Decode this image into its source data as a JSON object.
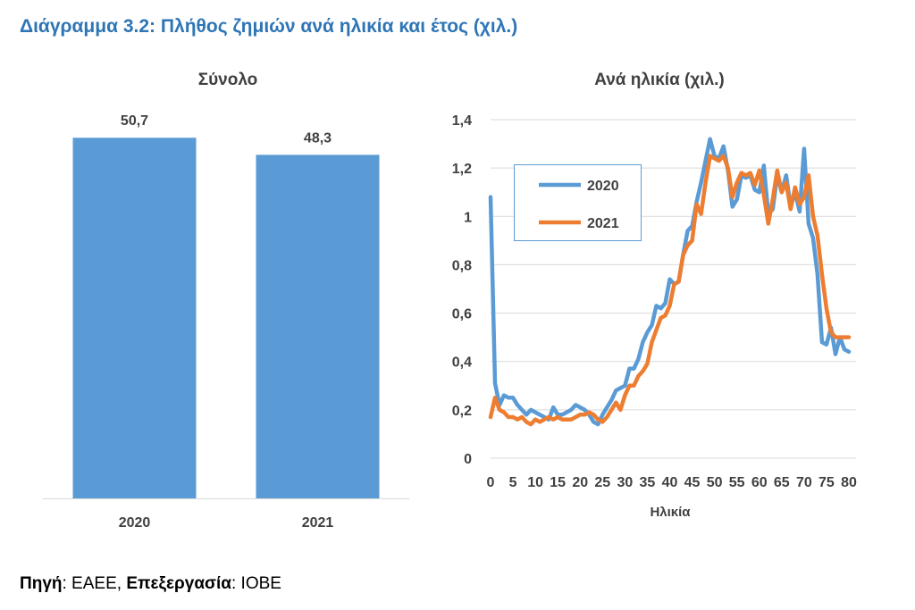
{
  "title": "Διάγραμμα 3.2: Πλήθος ζημιών ανά ηλικία και έτος (χιλ.)",
  "source": {
    "label1": "Πηγή",
    "text1": ": ΕΑΕΕ, ",
    "label2": "Επεξεργασία",
    "text2": ": ΙΟΒΕ"
  },
  "colors": {
    "series_2020": "#5b9bd5",
    "series_2021": "#ed7d31",
    "title": "#2e75b6",
    "grid": "#d9d9d9",
    "text": "#404040"
  },
  "chart_data": [
    {
      "type": "bar",
      "title": "Σύνολο",
      "categories": [
        "2020",
        "2021"
      ],
      "values": [
        50.7,
        48.3
      ],
      "data_labels": [
        "50,7",
        "48,3"
      ],
      "ylim": [
        0,
        55
      ],
      "grid": false
    },
    {
      "type": "line",
      "title": "Ανά ηλικία (χιλ.)",
      "xlabel": "Ηλικία",
      "ylabel": "",
      "xlim": [
        0,
        80
      ],
      "ylim": [
        0,
        1.4
      ],
      "x_ticks": [
        "0",
        "5",
        "10",
        "15",
        "20",
        "25",
        "30",
        "35",
        "40",
        "45",
        "50",
        "55",
        "60",
        "65",
        "70",
        "75",
        "80"
      ],
      "y_ticks": [
        "0",
        "0,2",
        "0,4",
        "0,6",
        "0,8",
        "1",
        "1,2",
        "1,4"
      ],
      "grid": true,
      "legend_position": "top-left",
      "series": [
        {
          "name": "2020",
          "x": [
            0,
            1,
            2,
            3,
            4,
            5,
            6,
            7,
            8,
            9,
            10,
            11,
            12,
            13,
            14,
            15,
            16,
            17,
            18,
            19,
            20,
            21,
            22,
            23,
            24,
            25,
            26,
            27,
            28,
            29,
            30,
            31,
            32,
            33,
            34,
            35,
            36,
            37,
            38,
            39,
            40,
            41,
            42,
            43,
            44,
            45,
            46,
            47,
            48,
            49,
            50,
            51,
            52,
            53,
            54,
            55,
            56,
            57,
            58,
            59,
            60,
            61,
            62,
            63,
            64,
            65,
            66,
            67,
            68,
            69,
            70,
            71,
            72,
            73,
            74,
            75,
            76,
            77,
            78,
            79,
            80
          ],
          "values": [
            1.08,
            0.31,
            0.22,
            0.26,
            0.25,
            0.25,
            0.22,
            0.2,
            0.18,
            0.2,
            0.19,
            0.18,
            0.17,
            0.16,
            0.21,
            0.18,
            0.18,
            0.19,
            0.2,
            0.22,
            0.21,
            0.2,
            0.18,
            0.15,
            0.14,
            0.18,
            0.21,
            0.24,
            0.28,
            0.29,
            0.3,
            0.37,
            0.37,
            0.41,
            0.48,
            0.52,
            0.55,
            0.63,
            0.62,
            0.64,
            0.74,
            0.72,
            0.73,
            0.84,
            0.94,
            0.96,
            1.06,
            1.14,
            1.23,
            1.32,
            1.25,
            1.24,
            1.29,
            1.19,
            1.04,
            1.07,
            1.17,
            1.16,
            1.17,
            1.11,
            1.1,
            1.21,
            1.01,
            1.03,
            1.17,
            1.1,
            1.17,
            1.04,
            1.1,
            1.02,
            1.28,
            0.97,
            0.91,
            0.76,
            0.48,
            0.47,
            0.54,
            0.43,
            0.5,
            0.45,
            0.44
          ]
        },
        {
          "name": "2021",
          "x": [
            0,
            1,
            2,
            3,
            4,
            5,
            6,
            7,
            8,
            9,
            10,
            11,
            12,
            13,
            14,
            15,
            16,
            17,
            18,
            19,
            20,
            21,
            22,
            23,
            24,
            25,
            26,
            27,
            28,
            29,
            30,
            31,
            32,
            33,
            34,
            35,
            36,
            37,
            38,
            39,
            40,
            41,
            42,
            43,
            44,
            45,
            46,
            47,
            48,
            49,
            50,
            51,
            52,
            53,
            54,
            55,
            56,
            57,
            58,
            59,
            60,
            61,
            62,
            63,
            64,
            65,
            66,
            67,
            68,
            69,
            70,
            71,
            72,
            73,
            74,
            75,
            76,
            77,
            78,
            79,
            80
          ],
          "values": [
            0.17,
            0.25,
            0.2,
            0.19,
            0.17,
            0.17,
            0.16,
            0.17,
            0.15,
            0.14,
            0.16,
            0.15,
            0.16,
            0.17,
            0.16,
            0.17,
            0.16,
            0.16,
            0.16,
            0.17,
            0.18,
            0.18,
            0.19,
            0.18,
            0.16,
            0.15,
            0.17,
            0.2,
            0.23,
            0.2,
            0.26,
            0.3,
            0.3,
            0.34,
            0.36,
            0.39,
            0.48,
            0.53,
            0.58,
            0.59,
            0.63,
            0.72,
            0.73,
            0.84,
            0.88,
            0.9,
            1.05,
            1.01,
            1.14,
            1.25,
            1.24,
            1.23,
            1.25,
            1.2,
            1.08,
            1.14,
            1.18,
            1.17,
            1.18,
            1.13,
            1.19,
            1.09,
            0.97,
            1.07,
            1.19,
            1.1,
            1.14,
            1.03,
            1.12,
            1.05,
            1.08,
            1.17,
            1.0,
            0.92,
            0.76,
            0.62,
            0.52,
            0.5,
            0.5,
            0.5,
            0.5
          ]
        }
      ]
    }
  ]
}
